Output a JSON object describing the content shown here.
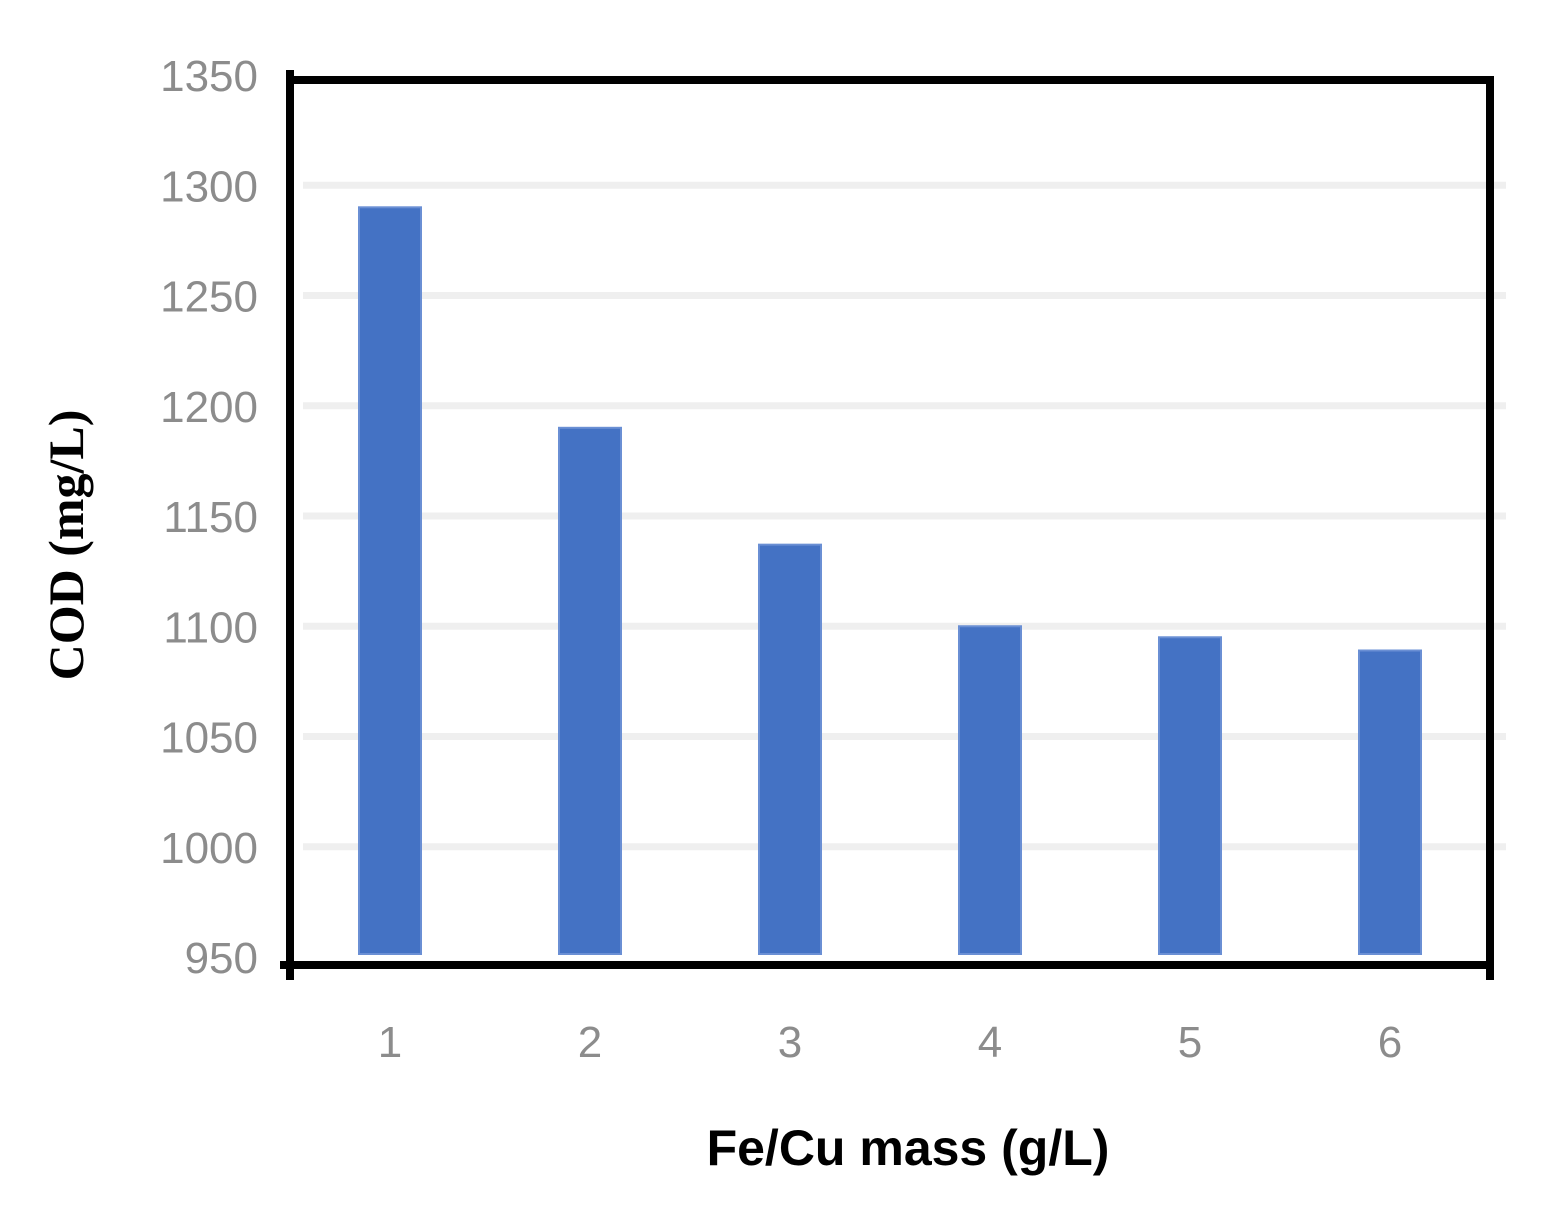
{
  "chart_data": {
    "type": "bar",
    "categories": [
      "1",
      "2",
      "3",
      "4",
      "5",
      "6"
    ],
    "series": [
      {
        "values": [
          1290,
          1190,
          1137,
          1100,
          1095,
          1089
        ]
      }
    ],
    "title": "",
    "xlabel": "Fe/Cu  mass (g/L)",
    "ylabel": "COD (mg/L)",
    "ylim": [
      950,
      1350
    ],
    "yticks": [
      "950",
      "1000",
      "1050",
      "1100",
      "1150",
      "1200",
      "1250",
      "1300",
      "1350"
    ],
    "grid": true,
    "legend": "none",
    "colors": {
      "bar": "#4472c4",
      "grid": "#efefef",
      "axis": "#000000",
      "tick_text": "#8c8c8c"
    }
  }
}
